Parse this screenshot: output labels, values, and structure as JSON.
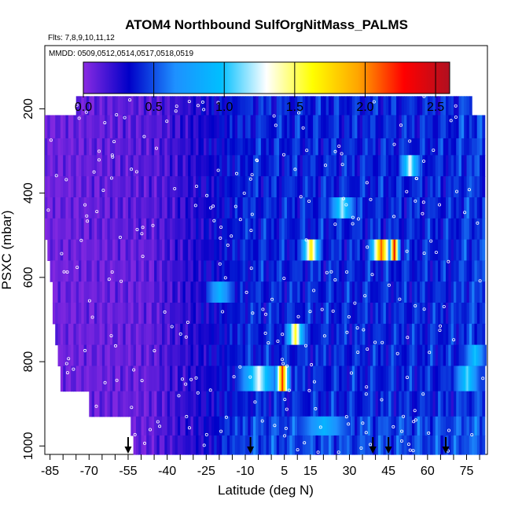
{
  "chart_data": {
    "type": "heatmap",
    "title": "ATOM4 Northbound SulfOrgNitMass_PALMS",
    "subtitle_flights": "Flts: 7,8,9,10,11,12",
    "subtitle_dates": "MMDD: 0509,0512,0514,0517,0518,0519",
    "xlabel": "Latitude (deg N)",
    "ylabel": "PSXC (mbar)",
    "xlim": [
      -87,
      83
    ],
    "ylim": [
      1020,
      50
    ],
    "y_reversed": true,
    "x_ticks": [
      -85,
      -70,
      -55,
      -40,
      -25,
      -10,
      5,
      15,
      30,
      45,
      60,
      75
    ],
    "y_ticks": [
      200,
      400,
      600,
      800,
      1000
    ],
    "colorbar": {
      "range": [
        0,
        2.6
      ],
      "ticks": [
        0.0,
        0.5,
        1.0,
        1.5,
        2.0,
        2.5
      ],
      "tick_labels": [
        "0.0",
        "0.5",
        "1.0",
        "1.5",
        "2.0",
        "2.5"
      ],
      "colors": [
        "#8a2be2",
        "#0000c8",
        "#1e90ff",
        "#00bfff",
        "#ffffff",
        "#ffff00",
        "#ffa500",
        "#ff0000",
        "#b01020"
      ]
    },
    "layers": [
      {
        "p_top": 170,
        "p_bot": 215,
        "lat_start": -75,
        "lat_end": 77
      },
      {
        "p_top": 215,
        "p_bot": 270,
        "lat_start": -87,
        "lat_end": 82
      },
      {
        "p_top": 270,
        "p_bot": 310,
        "lat_start": -87,
        "lat_end": 82
      },
      {
        "p_top": 310,
        "p_bot": 360,
        "lat_start": -87,
        "lat_end": 82
      },
      {
        "p_top": 360,
        "p_bot": 410,
        "lat_start": -87,
        "lat_end": 82
      },
      {
        "p_top": 410,
        "p_bot": 460,
        "lat_start": -87,
        "lat_end": 82
      },
      {
        "p_top": 460,
        "p_bot": 510,
        "lat_start": -87,
        "lat_end": 82
      },
      {
        "p_top": 510,
        "p_bot": 560,
        "lat_start": -86,
        "lat_end": 82
      },
      {
        "p_top": 560,
        "p_bot": 610,
        "lat_start": -85,
        "lat_end": 82
      },
      {
        "p_top": 610,
        "p_bot": 660,
        "lat_start": -84,
        "lat_end": 82
      },
      {
        "p_top": 660,
        "p_bot": 710,
        "lat_start": -84,
        "lat_end": 82
      },
      {
        "p_top": 710,
        "p_bot": 760,
        "lat_start": -83,
        "lat_end": 82
      },
      {
        "p_top": 760,
        "p_bot": 810,
        "lat_start": -82,
        "lat_end": 82
      },
      {
        "p_top": 810,
        "p_bot": 870,
        "lat_start": -81,
        "lat_end": 82
      },
      {
        "p_top": 870,
        "p_bot": 930,
        "lat_start": -70,
        "lat_end": 82
      },
      {
        "p_top": 930,
        "p_bot": 975,
        "lat_start": -54,
        "lat_end": 82
      },
      {
        "p_top": 975,
        "p_bot": 1020,
        "lat_start": -53,
        "lat_end": 82
      }
    ],
    "features": [
      {
        "p_top": 410,
        "p_bot": 460,
        "lat": 27,
        "half_width": 5,
        "peak": 1.2
      },
      {
        "p_top": 510,
        "p_bot": 560,
        "lat": 15,
        "half_width": 4,
        "peak": 1.7
      },
      {
        "p_top": 510,
        "p_bot": 560,
        "lat": 42,
        "half_width": 5,
        "peak": 2.1
      },
      {
        "p_top": 510,
        "p_bot": 560,
        "lat": 47,
        "half_width": 2,
        "peak": 2.4
      },
      {
        "p_top": 710,
        "p_bot": 760,
        "lat": 9,
        "half_width": 4,
        "peak": 1.6
      },
      {
        "p_top": 810,
        "p_bot": 870,
        "lat": -5,
        "half_width": 8,
        "peak": 1.3
      },
      {
        "p_top": 810,
        "p_bot": 870,
        "lat": 4,
        "half_width": 3,
        "peak": 2.2
      },
      {
        "p_top": 810,
        "p_bot": 870,
        "lat": 75,
        "half_width": 5,
        "peak": 1.1
      },
      {
        "p_top": 310,
        "p_bot": 360,
        "lat": 53,
        "half_width": 4,
        "peak": 1.3
      },
      {
        "p_top": 760,
        "p_bot": 810,
        "lat": 78,
        "half_width": 4,
        "peak": 1.0
      },
      {
        "p_top": 610,
        "p_bot": 660,
        "lat": -20,
        "half_width": 5,
        "peak": 0.9
      },
      {
        "p_top": 930,
        "p_bot": 975,
        "lat": 20,
        "half_width": 10,
        "peak": 0.9
      }
    ],
    "arrow_latitudes": [
      -55,
      -8,
      39,
      45,
      67
    ]
  }
}
